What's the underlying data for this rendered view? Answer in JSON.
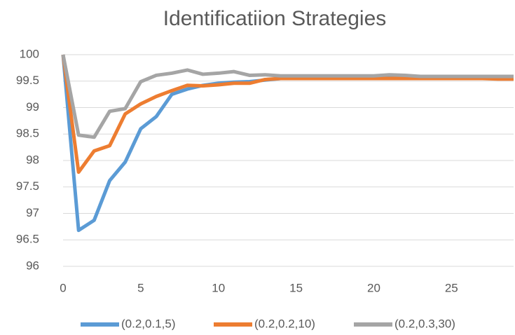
{
  "chart_data": {
    "type": "line",
    "title": "Identificatiion Strategies",
    "x": [
      0,
      1,
      2,
      3,
      4,
      5,
      6,
      7,
      8,
      9,
      10,
      11,
      12,
      13,
      14,
      15,
      16,
      17,
      18,
      19,
      20,
      21,
      22,
      23,
      24,
      25,
      26,
      27,
      28,
      29
    ],
    "series": [
      {
        "name": "(0.2,0.1,5)",
        "color": "#5b9bd5",
        "values": [
          100,
          96.68,
          96.87,
          97.62,
          97.97,
          98.6,
          98.83,
          99.25,
          99.35,
          99.42,
          99.46,
          99.48,
          99.49,
          99.52,
          99.55,
          99.56,
          99.56,
          99.56,
          99.56,
          99.56,
          99.56,
          99.56,
          99.56,
          99.56,
          99.56,
          99.56,
          99.56,
          99.56,
          99.56,
          99.56
        ]
      },
      {
        "name": "(0.2,0.2,10)",
        "color": "#ed7d31",
        "values": [
          100,
          97.78,
          98.18,
          98.28,
          98.88,
          99.07,
          99.21,
          99.32,
          99.42,
          99.41,
          99.43,
          99.46,
          99.46,
          99.53,
          99.55,
          99.55,
          99.55,
          99.55,
          99.55,
          99.55,
          99.55,
          99.55,
          99.55,
          99.55,
          99.55,
          99.55,
          99.55,
          99.55,
          99.54,
          99.54
        ]
      },
      {
        "name": "(0.2,0.3,30)",
        "color": "#a5a5a5",
        "values": [
          100,
          98.48,
          98.44,
          98.93,
          98.98,
          99.49,
          99.61,
          99.65,
          99.71,
          99.63,
          99.65,
          99.68,
          99.61,
          99.62,
          99.6,
          99.6,
          99.6,
          99.6,
          99.6,
          99.6,
          99.6,
          99.62,
          99.61,
          99.59,
          99.59,
          99.59,
          99.59,
          99.59,
          99.59,
          99.59
        ]
      }
    ],
    "xlim": [
      0,
      29
    ],
    "xticks": [
      0,
      5,
      10,
      15,
      20,
      25
    ],
    "ylim": [
      96,
      100
    ],
    "yticks": [
      96,
      96.5,
      97,
      97.5,
      98,
      98.5,
      99,
      99.5,
      100
    ],
    "grid": true,
    "legend": "bottom"
  }
}
